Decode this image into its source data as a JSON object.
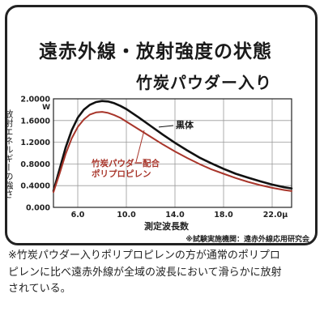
{
  "title": {
    "line1": "遠赤外線・放射強度の状態",
    "line2": "竹炭パウダー入り"
  },
  "colors": {
    "frame": "#222222",
    "series_black_body": "#111111",
    "series_bamboo": "#a8352a"
  },
  "chart_data": {
    "type": "line",
    "ylabel": "放射エネルギーの強さ",
    "y_unit": "W",
    "xlabel": "測定波長数",
    "x_unit": "μ",
    "xlim": [
      4.0,
      23.6
    ],
    "ylim": [
      0.0,
      2.0
    ],
    "x_ticks": [
      "6.0",
      "10.0",
      "14.0",
      "18.0",
      "22.0"
    ],
    "y_ticks": [
      "0.000",
      "0.4000",
      "0.8000",
      "1.2000",
      "1.6000",
      "2.0000"
    ],
    "grid": true,
    "series": [
      {
        "name": "黒体",
        "x": [
          4.0,
          4.5,
          5.0,
          5.5,
          6.0,
          6.5,
          7.0,
          7.5,
          8.0,
          8.5,
          9.0,
          9.5,
          10.0,
          11.0,
          12.0,
          13.0,
          14.0,
          15.0,
          16.0,
          17.0,
          18.0,
          19.0,
          20.0,
          21.0,
          22.0,
          23.0,
          23.6
        ],
        "y": [
          0.3,
          0.7,
          1.1,
          1.42,
          1.65,
          1.8,
          1.89,
          1.94,
          1.96,
          1.95,
          1.92,
          1.87,
          1.81,
          1.66,
          1.5,
          1.34,
          1.19,
          1.05,
          0.92,
          0.81,
          0.71,
          0.62,
          0.55,
          0.48,
          0.42,
          0.37,
          0.35
        ]
      },
      {
        "name": "竹炭パウダー配合\nポリプロピレン",
        "x": [
          4.0,
          4.5,
          5.0,
          5.5,
          6.0,
          6.5,
          7.0,
          7.5,
          8.0,
          8.5,
          9.0,
          9.5,
          10.0,
          11.0,
          12.0,
          13.0,
          14.0,
          15.0,
          16.0,
          17.0,
          18.0,
          19.0,
          20.0,
          21.0,
          22.0,
          23.0,
          23.6
        ],
        "y": [
          0.28,
          0.62,
          0.98,
          1.27,
          1.48,
          1.62,
          1.71,
          1.75,
          1.76,
          1.74,
          1.7,
          1.65,
          1.58,
          1.44,
          1.3,
          1.16,
          1.03,
          0.91,
          0.8,
          0.7,
          0.62,
          0.54,
          0.47,
          0.41,
          0.36,
          0.32,
          0.3
        ]
      }
    ]
  },
  "source": "※試験実施機関：遠赤外線応用研究会",
  "footnote": {
    "line1": "※竹炭パウダー入りポリプロピレンの方が通常のポリプロ",
    "line2": "ピレンに比べ遠赤外線が全域の波長において滑らかに放射",
    "line3": "されている。"
  }
}
